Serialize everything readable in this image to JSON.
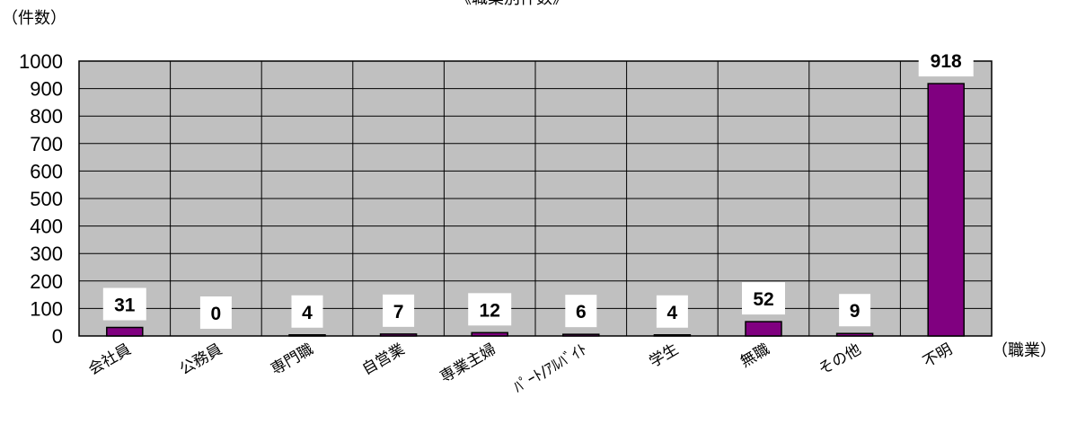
{
  "chart_data": {
    "type": "bar",
    "title": "《職業別件数》",
    "ylabel": "（件数）",
    "xlabel": "（職業）",
    "categories": [
      "会社員",
      "公務員",
      "専門職",
      "自営業",
      "専業主婦",
      "ﾊﾟｰﾄ/ｱﾙﾊﾞｲﾄ",
      "学生",
      "無職",
      "その他",
      "不明"
    ],
    "values": [
      31,
      0,
      4,
      7,
      12,
      6,
      4,
      52,
      9,
      918
    ],
    "ylim": [
      0,
      1000
    ],
    "yticks": [
      0,
      100,
      200,
      300,
      400,
      500,
      600,
      700,
      800,
      900,
      1000
    ],
    "grid": true,
    "legend": "none",
    "colors": {
      "bar": "#800080",
      "plot_bg": "#c0c0c0",
      "grid": "#000000",
      "label_bg": "#ffffff"
    }
  }
}
